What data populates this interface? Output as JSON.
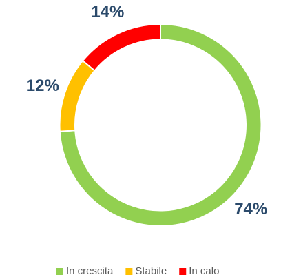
{
  "chart_data": {
    "type": "donut",
    "categories": [
      "In crescita",
      "Stabile",
      "In calo"
    ],
    "values": [
      74,
      12,
      14
    ],
    "value_labels": [
      "74%",
      "12%",
      "14%"
    ],
    "colors": [
      "#92d050",
      "#ffc000",
      "#ff0000"
    ],
    "legend": "bottom"
  }
}
